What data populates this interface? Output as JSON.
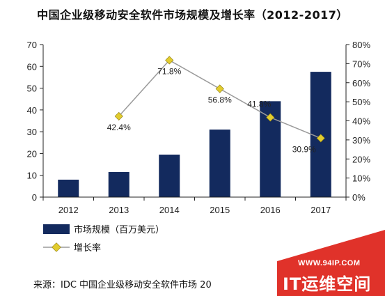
{
  "chart_data": {
    "type": "bar",
    "title": "中国企业级移动安全软件市场规模及增长率（2012-2017）",
    "categories": [
      "2012",
      "2013",
      "2014",
      "2015",
      "2016",
      "2017"
    ],
    "series": [
      {
        "name": "市场规模（百万美元）",
        "type": "bar",
        "axis": "left",
        "values": [
          8,
          11.5,
          19.5,
          31,
          44,
          57.5
        ],
        "color": "#132a5e"
      },
      {
        "name": "增长率",
        "type": "line",
        "axis": "right",
        "values": [
          null,
          42.4,
          71.8,
          56.8,
          41.8,
          30.9
        ],
        "labels": [
          "",
          "42.4%",
          "71.8%",
          "56.8%",
          "41.8%",
          "30.9%"
        ],
        "line_color": "#9a9a9a",
        "marker_color": "#e2cc2e"
      }
    ],
    "y_left": {
      "min": 0,
      "max": 70,
      "step": 10,
      "ticks": [
        "0",
        "10",
        "20",
        "30",
        "40",
        "50",
        "60",
        "70"
      ]
    },
    "y_right": {
      "min": 0,
      "max": 80,
      "step": 10,
      "ticks": [
        "0%",
        "10%",
        "20%",
        "30%",
        "40%",
        "50%",
        "60%",
        "70%",
        "80%"
      ]
    },
    "grid": false,
    "legend_position": "bottom-left"
  },
  "source_note": "来源：IDC 中国企业级移动安全软件市场 20",
  "watermark": {
    "url": "WWW.94IP.COM",
    "text": "IT运维空间",
    "color": "#e0322a"
  }
}
